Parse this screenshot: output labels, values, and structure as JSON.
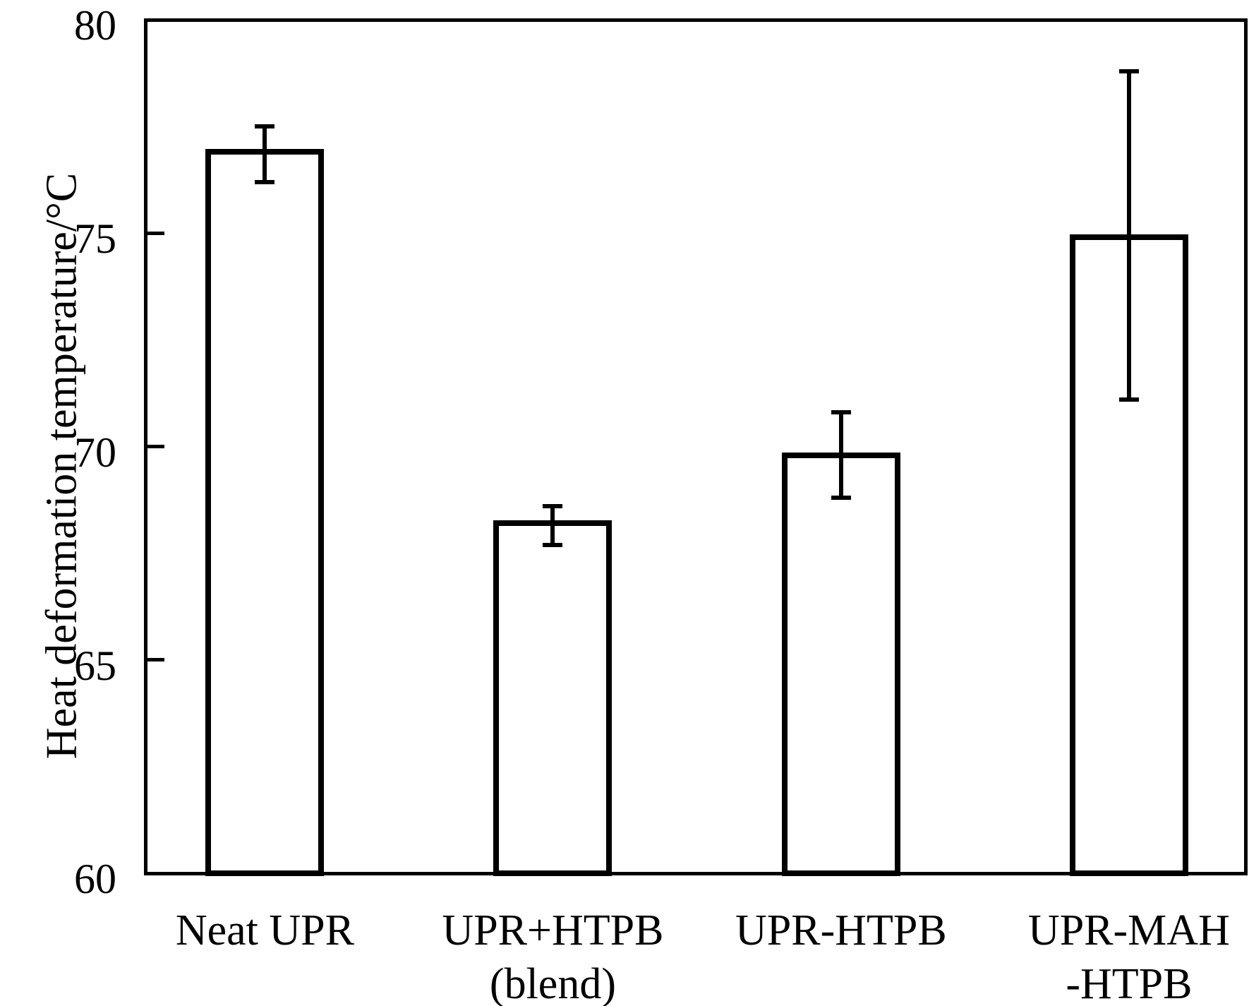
{
  "figure": {
    "background_color": "#ffffff",
    "line_color": "#000000"
  },
  "chart_data": {
    "type": "bar",
    "title": "",
    "xlabel": "",
    "ylabel": "Heat deformation temperature/°C",
    "ylim": [
      60,
      80
    ],
    "yticks": [
      60,
      65,
      70,
      75,
      80
    ],
    "grid": false,
    "legend": "none",
    "bar_fill": "#ffffff",
    "bar_edge": "#000000",
    "categories": [
      "Neat UPR",
      "UPR+HTPB\n(blend)",
      "UPR-HTPB",
      "UPR-MAH\n-HTPB"
    ],
    "series": [
      {
        "name": "Heat deformation temperature",
        "values": [
          76.9,
          68.2,
          69.8,
          74.9
        ],
        "error_upper": [
          77.5,
          68.6,
          70.8,
          78.8
        ],
        "error_lower": [
          76.2,
          67.7,
          68.8,
          71.1
        ]
      }
    ]
  }
}
